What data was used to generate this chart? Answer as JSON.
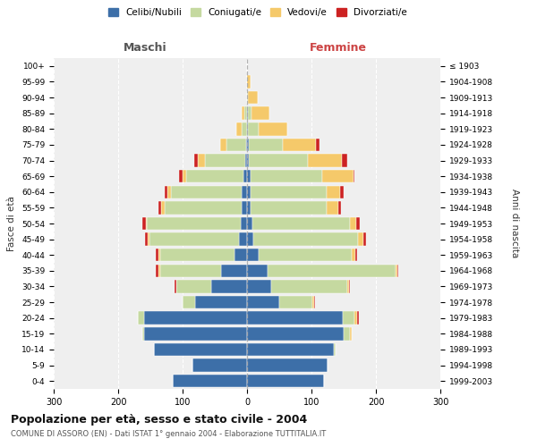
{
  "age_groups_bottom_to_top": [
    "0-4",
    "5-9",
    "10-14",
    "15-19",
    "20-24",
    "25-29",
    "30-34",
    "35-39",
    "40-44",
    "45-49",
    "50-54",
    "55-59",
    "60-64",
    "65-69",
    "70-74",
    "75-79",
    "80-84",
    "85-89",
    "90-94",
    "95-99",
    "100+"
  ],
  "birth_years_bottom_to_top": [
    "1999-2003",
    "1994-1998",
    "1989-1993",
    "1984-1988",
    "1979-1983",
    "1974-1978",
    "1969-1973",
    "1964-1968",
    "1959-1963",
    "1954-1958",
    "1949-1953",
    "1944-1948",
    "1939-1943",
    "1934-1938",
    "1929-1933",
    "1924-1928",
    "1919-1923",
    "1914-1918",
    "1909-1913",
    "1904-1908",
    "≤ 1903"
  ],
  "colors": {
    "celibi": "#3d6fa8",
    "coniugati": "#c5d9a0",
    "vedovi": "#f5c96a",
    "divorziati": "#cc2222"
  },
  "maschi_cel": [
    115,
    85,
    145,
    160,
    160,
    80,
    55,
    40,
    20,
    12,
    10,
    8,
    8,
    5,
    3,
    2,
    0,
    0,
    0,
    0,
    0
  ],
  "maschi_con": [
    0,
    0,
    0,
    2,
    10,
    20,
    55,
    95,
    115,
    140,
    145,
    120,
    110,
    90,
    62,
    30,
    8,
    4,
    0,
    0,
    0
  ],
  "maschi_ved": [
    0,
    0,
    0,
    0,
    0,
    0,
    0,
    2,
    2,
    2,
    2,
    5,
    5,
    5,
    12,
    10,
    8,
    5,
    0,
    0,
    0
  ],
  "maschi_div": [
    0,
    0,
    0,
    0,
    0,
    0,
    3,
    5,
    5,
    5,
    5,
    5,
    5,
    5,
    5,
    0,
    0,
    0,
    0,
    0,
    0
  ],
  "femmine_cel": [
    120,
    125,
    135,
    150,
    148,
    50,
    38,
    32,
    18,
    10,
    8,
    5,
    5,
    5,
    3,
    3,
    2,
    2,
    0,
    0,
    0
  ],
  "femmine_con": [
    0,
    0,
    2,
    10,
    18,
    52,
    118,
    198,
    145,
    162,
    152,
    118,
    118,
    112,
    92,
    52,
    16,
    5,
    2,
    0,
    0
  ],
  "femmine_ved": [
    0,
    0,
    0,
    2,
    5,
    2,
    2,
    3,
    5,
    8,
    10,
    18,
    22,
    48,
    52,
    52,
    45,
    28,
    15,
    5,
    0
  ],
  "femmine_div": [
    0,
    0,
    0,
    0,
    2,
    2,
    2,
    2,
    3,
    5,
    5,
    5,
    5,
    2,
    8,
    5,
    0,
    0,
    0,
    0,
    0
  ],
  "title": "Popolazione per età, sesso e stato civile - 2004",
  "subtitle": "COMUNE DI ASSORO (EN) - Dati ISTAT 1° gennaio 2004 - Elaborazione TUTTITALIA.IT",
  "ylabel_left": "Fasce di età",
  "ylabel_right": "Anni di nascita",
  "xlabel_left": "Maschi",
  "xlabel_right": "Femmine",
  "xlim": 300,
  "legend_labels": [
    "Celibi/Nubili",
    "Coniugati/e",
    "Vedovi/e",
    "Divorziati/e"
  ],
  "legend_colors": [
    "#3d6fa8",
    "#c5d9a0",
    "#f5c96a",
    "#cc2222"
  ],
  "background_color": "#ffffff",
  "plot_bg_color": "#efefef"
}
